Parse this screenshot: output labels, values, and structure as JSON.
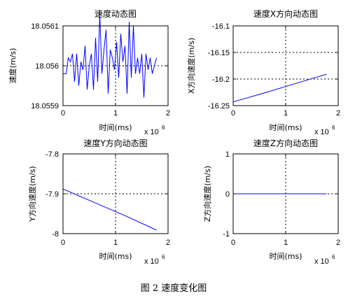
{
  "figure": {
    "caption": "图 2  速度变化图"
  },
  "chart_data": [
    {
      "type": "line",
      "title": "速度动态图",
      "xlabel": "时间(ms)",
      "ylabel": "速度(m/s)",
      "x_multiplier": "x 10",
      "x_exponent": "6",
      "xlim": [
        0,
        2
      ],
      "ylim": [
        18.0559,
        18.0561
      ],
      "xticks": [
        0,
        1,
        2
      ],
      "xtick_labels": [
        "0",
        "1",
        "2"
      ],
      "yticks": [
        18.0561,
        18.056,
        18.0559
      ],
      "ytick_labels": [
        "18.0561",
        "18.056",
        "18.0559"
      ],
      "grid": true,
      "color": "#0000ff",
      "series": [
        {
          "x": [
            0.0,
            0.06,
            0.1,
            0.14,
            0.18,
            0.22,
            0.26,
            0.3,
            0.34,
            0.38,
            0.42,
            0.46,
            0.5,
            0.54,
            0.58,
            0.62,
            0.66,
            0.7,
            0.74,
            0.78,
            0.82,
            0.86,
            0.9,
            0.94,
            0.98,
            1.02,
            1.06,
            1.1,
            1.14,
            1.18,
            1.22,
            1.26,
            1.3,
            1.34,
            1.38,
            1.42,
            1.46,
            1.5,
            1.54,
            1.58,
            1.62,
            1.66,
            1.7,
            1.74,
            1.78
          ],
          "y": [
            18.05598,
            18.05598,
            18.05602,
            18.05601,
            18.05603,
            18.05596,
            18.05603,
            18.05595,
            18.05601,
            18.05599,
            18.05605,
            18.05594,
            18.056,
            18.05603,
            18.05594,
            18.05607,
            18.05596,
            18.05613,
            18.05598,
            18.05604,
            18.05609,
            18.05593,
            18.05604,
            18.05602,
            18.05599,
            18.05606,
            18.05597,
            18.05608,
            18.05601,
            18.05605,
            18.05593,
            18.05611,
            18.05597,
            18.0561,
            18.05598,
            18.05602,
            18.05598,
            18.05603,
            18.05592,
            18.05603,
            18.05599,
            18.05602,
            18.05598,
            18.056,
            18.05602
          ]
        }
      ]
    },
    {
      "type": "line",
      "title": "速度X方向动态图",
      "xlabel": "时间(ms)",
      "ylabel": "X方向速度(m/s)",
      "x_multiplier": "x 10",
      "x_exponent": "6",
      "xlim": [
        0,
        2
      ],
      "ylim": [
        -16.25,
        -16.1
      ],
      "xticks": [
        0,
        1,
        2
      ],
      "xtick_labels": [
        "0",
        "1",
        "2"
      ],
      "yticks": [
        -16.1,
        -16.15,
        -16.2,
        -16.25
      ],
      "ytick_labels": [
        "-16.1",
        "-16.15",
        "-16.2",
        "-16.25"
      ],
      "grid": true,
      "color": "#0000ff",
      "series": [
        {
          "x": [
            0.0,
            0.6,
            1.2,
            1.78
          ],
          "y": [
            -16.243,
            -16.226,
            -16.208,
            -16.191
          ]
        }
      ]
    },
    {
      "type": "line",
      "title": "速度Y方向动态图",
      "xlabel": "时间(ms)",
      "ylabel": "Y方向速度(m/s)",
      "x_multiplier": "x 10",
      "x_exponent": "6",
      "xlim": [
        0,
        2
      ],
      "ylim": [
        -8,
        -7.8
      ],
      "xticks": [
        0,
        1,
        2
      ],
      "xtick_labels": [
        "0",
        "1",
        "2"
      ],
      "yticks": [
        -7.8,
        -7.9,
        -8
      ],
      "ytick_labels": [
        "-7.8",
        "-7.9",
        "-8"
      ],
      "grid": true,
      "color": "#0000ff",
      "series": [
        {
          "x": [
            0.0,
            0.6,
            1.2,
            1.78
          ],
          "y": [
            -7.888,
            -7.922,
            -7.956,
            -7.991
          ]
        }
      ]
    },
    {
      "type": "line",
      "title": "速度Z方向动态图",
      "xlabel": "时间(ms)",
      "ylabel": "Z方向速度(m/s)",
      "x_multiplier": "x 10",
      "x_exponent": "6",
      "xlim": [
        0,
        2
      ],
      "ylim": [
        -1,
        1
      ],
      "xticks": [
        0,
        1,
        2
      ],
      "xtick_labels": [
        "0",
        "1",
        "2"
      ],
      "yticks": [
        1,
        0,
        -1
      ],
      "ytick_labels": [
        "1",
        "0",
        "-1"
      ],
      "grid": true,
      "color": "#0000ff",
      "series": [
        {
          "x": [
            0.0,
            1.78
          ],
          "y": [
            0,
            0
          ]
        }
      ]
    }
  ]
}
